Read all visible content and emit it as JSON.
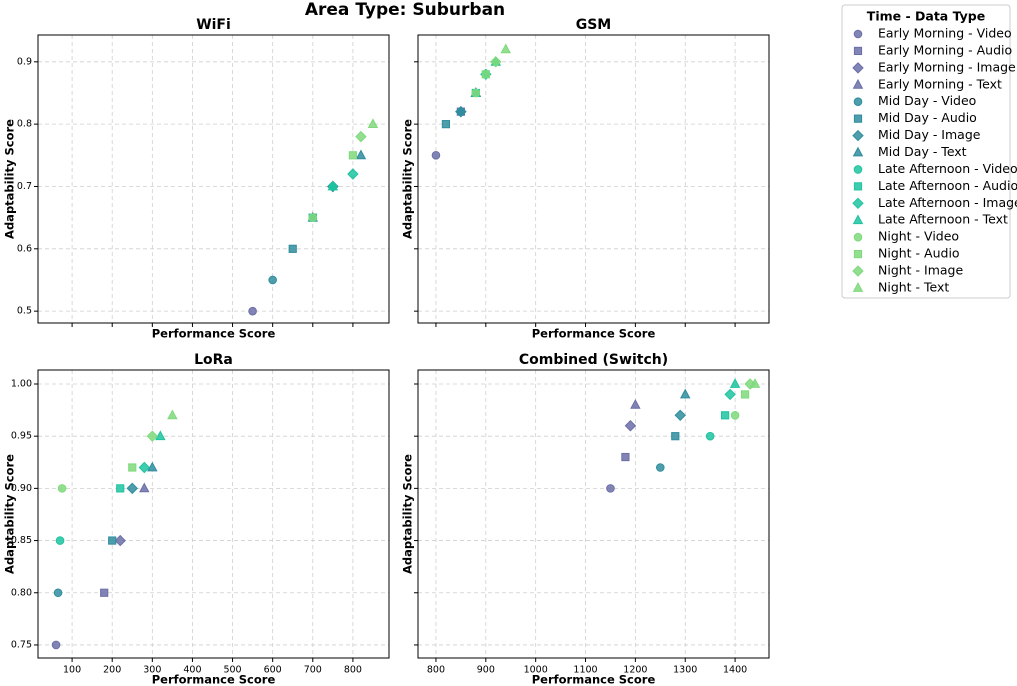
{
  "title": "Area Type: Suburban",
  "legend": {
    "title": "Time - Data Type",
    "entries": [
      {
        "name": "Early Morning - Video",
        "color": "#6b6fa8",
        "marker": "circle"
      },
      {
        "name": "Early Morning - Audio",
        "color": "#6b6fa8",
        "marker": "square"
      },
      {
        "name": "Early Morning - Image",
        "color": "#6b6fa8",
        "marker": "diamond"
      },
      {
        "name": "Early Morning - Text",
        "color": "#6b6fa8",
        "marker": "triangle"
      },
      {
        "name": "Mid Day - Video",
        "color": "#2f8d9e",
        "marker": "circle"
      },
      {
        "name": "Mid Day - Audio",
        "color": "#2f8d9e",
        "marker": "square"
      },
      {
        "name": "Mid Day - Image",
        "color": "#2f8d9e",
        "marker": "diamond"
      },
      {
        "name": "Mid Day - Text",
        "color": "#2f8d9e",
        "marker": "triangle"
      },
      {
        "name": "Late Afternoon - Video",
        "color": "#1fc3a0",
        "marker": "circle"
      },
      {
        "name": "Late Afternoon - Audio",
        "color": "#1fc3a0",
        "marker": "square"
      },
      {
        "name": "Late Afternoon - Image",
        "color": "#1fc3a0",
        "marker": "diamond"
      },
      {
        "name": "Late Afternoon - Text",
        "color": "#1fc3a0",
        "marker": "triangle"
      },
      {
        "name": "Night - Video",
        "color": "#7fd97c",
        "marker": "circle"
      },
      {
        "name": "Night - Audio",
        "color": "#7fd97c",
        "marker": "square"
      },
      {
        "name": "Night - Image",
        "color": "#7fd97c",
        "marker": "diamond"
      },
      {
        "name": "Night - Text",
        "color": "#7fd97c",
        "marker": "triangle"
      }
    ]
  },
  "chart_data": [
    {
      "type": "scatter",
      "title": "WiFi",
      "xlabel": "Performance Score",
      "ylabel": "Adaptability Score",
      "grid": true,
      "ylim": [
        0.481,
        0.943
      ],
      "yticks": [
        0.5,
        0.6,
        0.7,
        0.8,
        0.9
      ],
      "series": [
        {
          "x": [
            550
          ],
          "y": [
            0.5
          ]
        },
        {
          "x": [
            700
          ],
          "y": [
            0.65
          ]
        },
        {
          "x": [
            750
          ],
          "y": [
            0.7
          ]
        },
        {
          "x": [
            700
          ],
          "y": [
            0.65
          ]
        },
        {
          "x": [
            600
          ],
          "y": [
            0.55
          ]
        },
        {
          "x": [
            650
          ],
          "y": [
            0.6
          ]
        },
        {
          "x": [
            750
          ],
          "y": [
            0.7
          ]
        },
        {
          "x": [
            820
          ],
          "y": [
            0.75
          ]
        },
        {
          "x": [
            750
          ],
          "y": [
            0.7
          ]
        },
        {
          "x": [
            700
          ],
          "y": [
            0.65
          ]
        },
        {
          "x": [
            800
          ],
          "y": [
            0.72
          ]
        },
        {
          "x": [
            750
          ],
          "y": [
            0.7
          ]
        },
        {
          "x": [
            700
          ],
          "y": [
            0.65
          ]
        },
        {
          "x": [
            800
          ],
          "y": [
            0.75
          ]
        },
        {
          "x": [
            820
          ],
          "y": [
            0.78
          ]
        },
        {
          "x": [
            850
          ],
          "y": [
            0.8
          ]
        }
      ]
    },
    {
      "type": "scatter",
      "title": "GSM",
      "xlabel": "Performance Score",
      "ylabel": "Adaptability Score",
      "grid": true,
      "series": [
        {
          "x": [
            800
          ],
          "y": [
            0.75
          ]
        },
        {
          "x": [
            850
          ],
          "y": [
            0.82
          ]
        },
        {
          "x": [
            850
          ],
          "y": [
            0.82
          ]
        },
        {
          "x": [
            880
          ],
          "y": [
            0.85
          ]
        },
        {
          "x": [
            850
          ],
          "y": [
            0.82
          ]
        },
        {
          "x": [
            820
          ],
          "y": [
            0.8
          ]
        },
        {
          "x": [
            850
          ],
          "y": [
            0.82
          ]
        },
        {
          "x": [
            880
          ],
          "y": [
            0.85
          ]
        },
        {
          "x": [
            900
          ],
          "y": [
            0.88
          ]
        },
        {
          "x": [
            880
          ],
          "y": [
            0.85
          ]
        },
        {
          "x": [
            900
          ],
          "y": [
            0.88
          ]
        },
        {
          "x": [
            920
          ],
          "y": [
            0.9
          ]
        },
        {
          "x": [
            880
          ],
          "y": [
            0.85
          ]
        },
        {
          "x": [
            900
          ],
          "y": [
            0.88
          ]
        },
        {
          "x": [
            920
          ],
          "y": [
            0.9
          ]
        },
        {
          "x": [
            940
          ],
          "y": [
            0.92
          ]
        }
      ]
    },
    {
      "type": "scatter",
      "title": "LoRa",
      "xlabel": "Performance Score",
      "ylabel": "Adaptability Score",
      "grid": true,
      "xlim": [
        15,
        890
      ],
      "xticks": [
        100,
        200,
        300,
        400,
        500,
        600,
        700,
        800
      ],
      "ylim": [
        0.7375,
        1.0134
      ],
      "yticks": [
        {
          "value": 0.75,
          "label": "0.75"
        },
        {
          "value": 0.8,
          "label": "0.80"
        },
        {
          "value": 0.85,
          "label": "0.85"
        },
        {
          "value": 0.9,
          "label": "0.90"
        },
        {
          "value": 0.95,
          "label": "0.95"
        },
        {
          "value": 1.0,
          "label": "1.00"
        }
      ],
      "series": [
        {
          "x": [
            60
          ],
          "y": [
            0.75
          ]
        },
        {
          "x": [
            180
          ],
          "y": [
            0.8
          ]
        },
        {
          "x": [
            220
          ],
          "y": [
            0.85
          ]
        },
        {
          "x": [
            280
          ],
          "y": [
            0.9
          ]
        },
        {
          "x": [
            65
          ],
          "y": [
            0.8
          ]
        },
        {
          "x": [
            200
          ],
          "y": [
            0.85
          ]
        },
        {
          "x": [
            250
          ],
          "y": [
            0.9
          ]
        },
        {
          "x": [
            300
          ],
          "y": [
            0.92
          ]
        },
        {
          "x": [
            70
          ],
          "y": [
            0.85
          ]
        },
        {
          "x": [
            220
          ],
          "y": [
            0.9
          ]
        },
        {
          "x": [
            280
          ],
          "y": [
            0.92
          ]
        },
        {
          "x": [
            320
          ],
          "y": [
            0.95
          ]
        },
        {
          "x": [
            75
          ],
          "y": [
            0.9
          ]
        },
        {
          "x": [
            250
          ],
          "y": [
            0.92
          ]
        },
        {
          "x": [
            300
          ],
          "y": [
            0.95
          ]
        },
        {
          "x": [
            350
          ],
          "y": [
            0.97
          ]
        }
      ]
    },
    {
      "type": "scatter",
      "title": "Combined (Switch)",
      "xlabel": "Performance Score",
      "ylabel": "Adaptability Score",
      "grid": true,
      "xlim": [
        764,
        1468
      ],
      "xticks": [
        800,
        900,
        1000,
        1100,
        1200,
        1300,
        1400
      ],
      "series": [
        {
          "x": [
            1150
          ],
          "y": [
            0.9
          ]
        },
        {
          "x": [
            1180
          ],
          "y": [
            0.93
          ]
        },
        {
          "x": [
            1190
          ],
          "y": [
            0.96
          ]
        },
        {
          "x": [
            1200
          ],
          "y": [
            0.98
          ]
        },
        {
          "x": [
            1250
          ],
          "y": [
            0.92
          ]
        },
        {
          "x": [
            1280
          ],
          "y": [
            0.95
          ]
        },
        {
          "x": [
            1290
          ],
          "y": [
            0.97
          ]
        },
        {
          "x": [
            1300
          ],
          "y": [
            0.99
          ]
        },
        {
          "x": [
            1350
          ],
          "y": [
            0.95
          ]
        },
        {
          "x": [
            1380
          ],
          "y": [
            0.97
          ]
        },
        {
          "x": [
            1390
          ],
          "y": [
            0.99
          ]
        },
        {
          "x": [
            1400
          ],
          "y": [
            1.0
          ]
        },
        {
          "x": [
            1400
          ],
          "y": [
            0.97
          ]
        },
        {
          "x": [
            1420
          ],
          "y": [
            0.99
          ]
        },
        {
          "x": [
            1430
          ],
          "y": [
            1.0
          ]
        },
        {
          "x": [
            1440
          ],
          "y": [
            1.0
          ]
        }
      ]
    }
  ]
}
